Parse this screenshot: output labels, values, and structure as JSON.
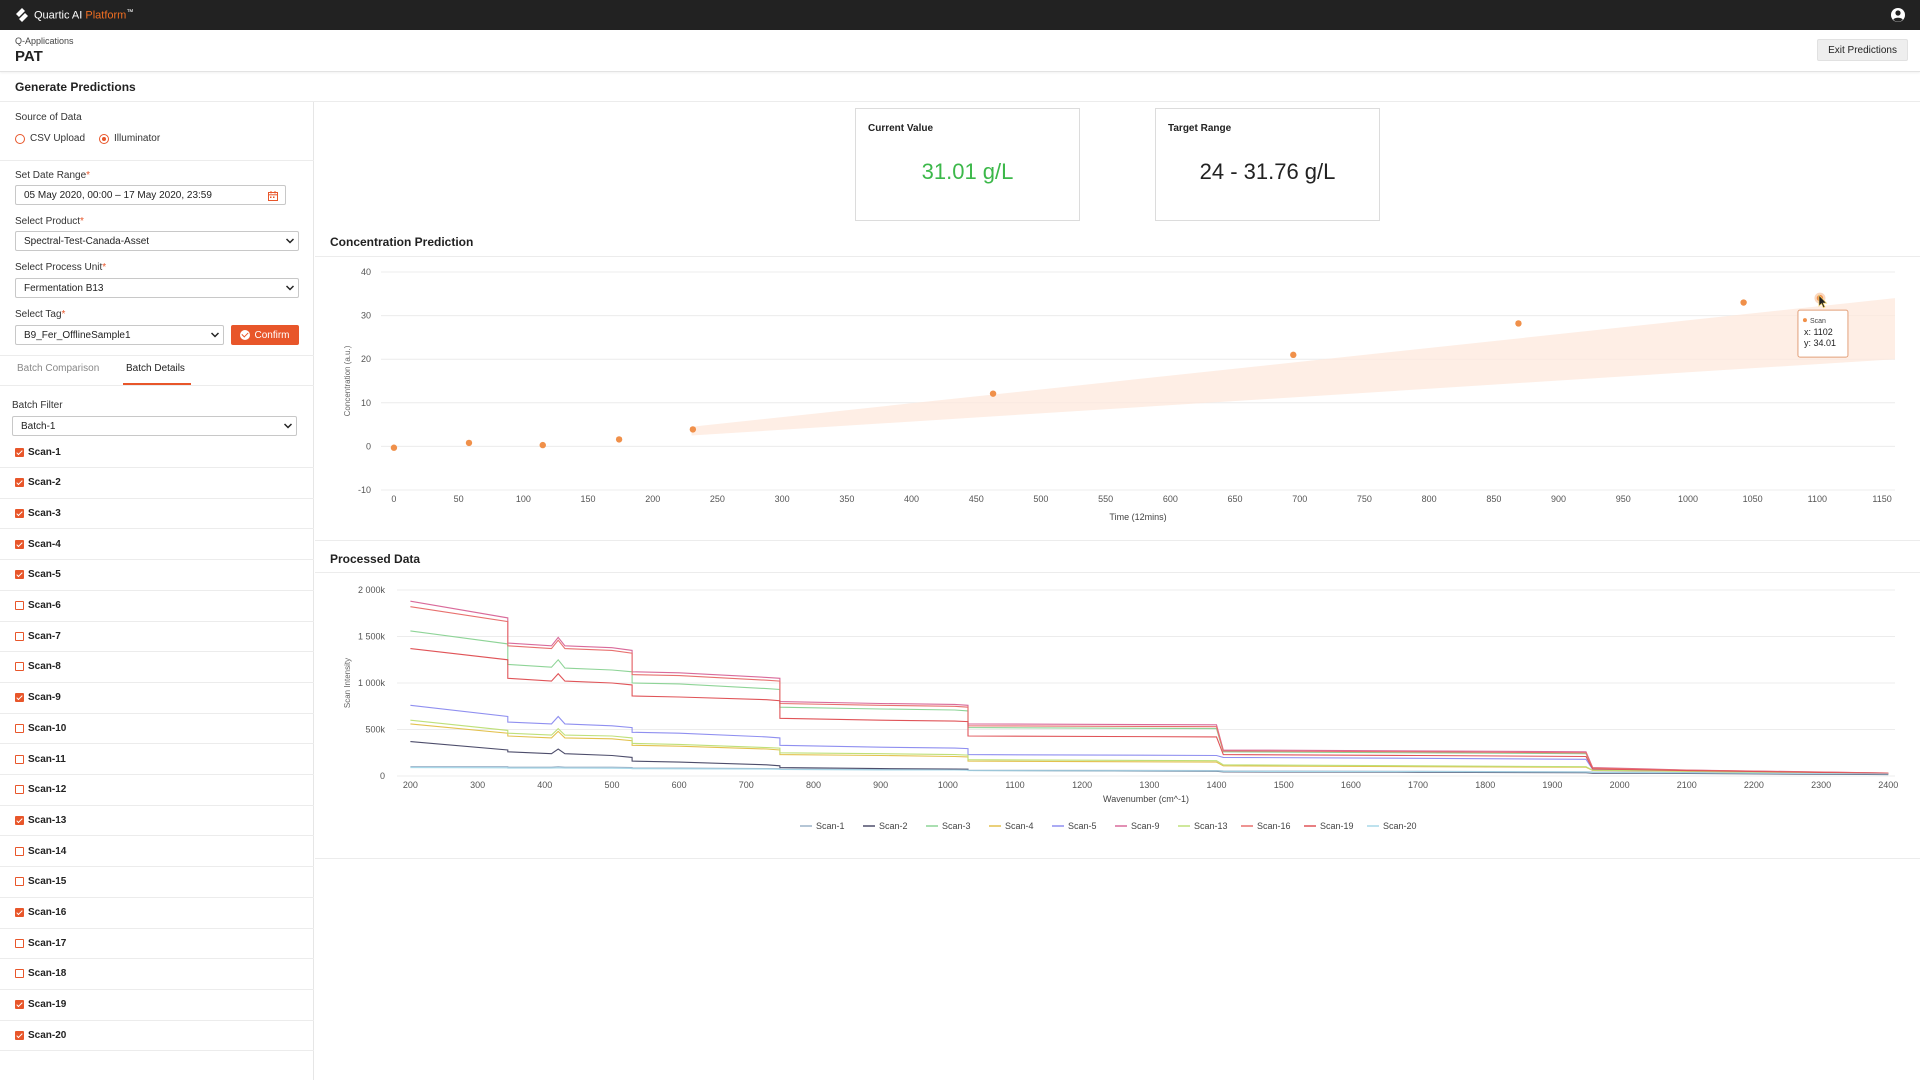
{
  "topbar": {
    "brand_prefix": "Quartic AI ",
    "brand_accent": "Platform",
    "brand_tm": "™",
    "user_icon": "user-circle-icon",
    "logo_icon": "quartic-logo-icon"
  },
  "header": {
    "breadcrumb": "Q-Applications",
    "title": "PAT",
    "exit_label": "Exit Predictions"
  },
  "section_title": "Generate Predictions",
  "sidebar": {
    "source_label": "Source of Data",
    "source_options": [
      {
        "label": "CSV Upload",
        "selected": false
      },
      {
        "label": "Illuminator",
        "selected": true
      }
    ],
    "date_range_label": "Set Date Range",
    "date_range_value": "05 May 2020, 00:00 – 17 May 2020, 23:59",
    "product_label": "Select Product",
    "product_value": "Spectral-Test-Canada-Asset",
    "process_unit_label": "Select Process Unit",
    "process_unit_value": "Fermentation B13",
    "tag_label": "Select Tag",
    "tag_value": "B9_Fer_OfflineSample1",
    "confirm_label": "Confirm",
    "required_mark": "*",
    "tabs": [
      {
        "label": "Batch Comparison",
        "active": false
      },
      {
        "label": "Batch Details",
        "active": true
      }
    ],
    "batch_filter_label": "Batch Filter",
    "batch_filter_value": "Batch-1",
    "scans": [
      {
        "label": "Scan-1",
        "checked": true
      },
      {
        "label": "Scan-2",
        "checked": true
      },
      {
        "label": "Scan-3",
        "checked": true
      },
      {
        "label": "Scan-4",
        "checked": true
      },
      {
        "label": "Scan-5",
        "checked": true
      },
      {
        "label": "Scan-6",
        "checked": false
      },
      {
        "label": "Scan-7",
        "checked": false
      },
      {
        "label": "Scan-8",
        "checked": false
      },
      {
        "label": "Scan-9",
        "checked": true
      },
      {
        "label": "Scan-10",
        "checked": false
      },
      {
        "label": "Scan-11",
        "checked": false
      },
      {
        "label": "Scan-12",
        "checked": false
      },
      {
        "label": "Scan-13",
        "checked": true
      },
      {
        "label": "Scan-14",
        "checked": false
      },
      {
        "label": "Scan-15",
        "checked": false
      },
      {
        "label": "Scan-16",
        "checked": true
      },
      {
        "label": "Scan-17",
        "checked": false
      },
      {
        "label": "Scan-18",
        "checked": false
      },
      {
        "label": "Scan-19",
        "checked": true
      },
      {
        "label": "Scan-20",
        "checked": true
      }
    ]
  },
  "cards": {
    "current_title": "Current Value",
    "current_value": "31.01 g/L",
    "current_color": "#3cb84a",
    "target_title": "Target Range",
    "target_value": "24 - 31.76 g/L"
  },
  "colors": {
    "accent": "#e8562a",
    "point": "#f0904a",
    "band": "#fde8dc"
  },
  "chart_data": [
    {
      "type": "scatter",
      "title": "Concentration Prediction",
      "xlabel": "Time (12mins)",
      "ylabel": "Concentration (a.u.)",
      "xlim": [
        -10,
        1160
      ],
      "ylim": [
        -10,
        40
      ],
      "xticks": [
        0,
        50,
        100,
        150,
        200,
        250,
        300,
        350,
        400,
        450,
        500,
        550,
        600,
        650,
        700,
        750,
        800,
        850,
        900,
        950,
        1000,
        1050,
        1100,
        1150
      ],
      "yticks": [
        -10,
        0,
        10,
        20,
        30,
        40
      ],
      "grid": true,
      "points": [
        {
          "x": 0,
          "y": -0.3
        },
        {
          "x": 58,
          "y": 0.8
        },
        {
          "x": 115,
          "y": 0.3
        },
        {
          "x": 174,
          "y": 1.6
        },
        {
          "x": 231,
          "y": 3.9
        },
        {
          "x": 463,
          "y": 12.1
        },
        {
          "x": 695,
          "y": 21.0
        },
        {
          "x": 869,
          "y": 28.2
        },
        {
          "x": 1043,
          "y": 33.0
        },
        {
          "x": 1102,
          "y": 34.01
        }
      ],
      "band": {
        "x": [
          230,
          1160
        ],
        "lower": [
          2.5,
          20.0
        ],
        "upper": [
          4.5,
          34.0
        ]
      },
      "tooltip": {
        "series": "Scan",
        "x_label": "x: ",
        "x": "1102",
        "y_label": "y: ",
        "y": "34.01"
      }
    },
    {
      "type": "line",
      "title": "Processed Data",
      "xlabel": "Wavenumber (cm^-1)",
      "ylabel": "Scan Intensity",
      "xlim": [
        180,
        2410
      ],
      "ylim": [
        0,
        2000000
      ],
      "xticks": [
        200,
        300,
        400,
        500,
        600,
        700,
        800,
        900,
        1000,
        1100,
        1200,
        1300,
        1400,
        1500,
        1600,
        1700,
        1800,
        1900,
        2000,
        2100,
        2200,
        2300,
        2400
      ],
      "yticks": [
        0,
        500000,
        1000000,
        1500000,
        2000000
      ],
      "ytick_labels": [
        "0",
        "500k",
        "1 000k",
        "1 500k",
        "2 000k"
      ],
      "grid": true,
      "legend_position": "bottom",
      "x": [
        200,
        345,
        345,
        410,
        420,
        430,
        500,
        530,
        530,
        600,
        730,
        750,
        750,
        900,
        1010,
        1030,
        1030,
        1400,
        1410,
        1700,
        1950,
        1960,
        2100,
        2400
      ],
      "series": [
        {
          "name": "Scan-1",
          "color": "#9cb3c9",
          "values": [
            100000,
            100000,
            95000,
            95000,
            100000,
            95000,
            95000,
            90000,
            85000,
            85000,
            80000,
            78000,
            75000,
            70000,
            68000,
            66000,
            62000,
            58000,
            55000,
            50000,
            45000,
            42000,
            38000,
            25000
          ]
        },
        {
          "name": "Scan-2",
          "color": "#4d4d6b",
          "values": [
            370000,
            280000,
            260000,
            240000,
            290000,
            240000,
            220000,
            200000,
            160000,
            150000,
            120000,
            110000,
            90000,
            80000,
            75000,
            73000,
            60000,
            50000,
            45000,
            40000,
            35000,
            30000,
            28000,
            15000
          ]
        },
        {
          "name": "Scan-3",
          "color": "#8ed497",
          "values": [
            1560000,
            1420000,
            1200000,
            1170000,
            1250000,
            1160000,
            1140000,
            1120000,
            1000000,
            990000,
            940000,
            930000,
            740000,
            720000,
            710000,
            700000,
            520000,
            510000,
            260000,
            250000,
            240000,
            80000,
            60000,
            30000
          ]
        },
        {
          "name": "Scan-4",
          "color": "#e3c14e",
          "values": [
            560000,
            460000,
            430000,
            410000,
            480000,
            410000,
            400000,
            380000,
            330000,
            320000,
            290000,
            280000,
            230000,
            220000,
            210000,
            205000,
            160000,
            150000,
            110000,
            100000,
            95000,
            60000,
            50000,
            25000
          ]
        },
        {
          "name": "Scan-5",
          "color": "#8f8ff0",
          "values": [
            760000,
            640000,
            580000,
            560000,
            640000,
            560000,
            540000,
            520000,
            470000,
            460000,
            420000,
            410000,
            330000,
            310000,
            300000,
            295000,
            230000,
            220000,
            200000,
            190000,
            180000,
            70000,
            55000,
            28000
          ]
        },
        {
          "name": "Scan-9",
          "color": "#d96a9a",
          "values": [
            1880000,
            1700000,
            1430000,
            1400000,
            1490000,
            1400000,
            1380000,
            1350000,
            1120000,
            1110000,
            1060000,
            1050000,
            800000,
            780000,
            770000,
            760000,
            560000,
            550000,
            280000,
            270000,
            260000,
            90000,
            65000,
            32000
          ]
        },
        {
          "name": "Scan-13",
          "color": "#bfe07a",
          "values": [
            600000,
            490000,
            460000,
            440000,
            510000,
            440000,
            430000,
            410000,
            350000,
            340000,
            305000,
            300000,
            250000,
            240000,
            230000,
            225000,
            175000,
            165000,
            120000,
            110000,
            100000,
            62000,
            52000,
            26000
          ]
        },
        {
          "name": "Scan-16",
          "color": "#e8706e",
          "values": [
            1820000,
            1660000,
            1400000,
            1370000,
            1460000,
            1370000,
            1350000,
            1320000,
            1090000,
            1080000,
            1030000,
            1020000,
            780000,
            760000,
            750000,
            740000,
            540000,
            530000,
            270000,
            260000,
            250000,
            85000,
            62000,
            31000
          ]
        },
        {
          "name": "Scan-19",
          "color": "#e05458",
          "values": [
            1370000,
            1250000,
            1050000,
            1020000,
            1100000,
            1020000,
            1000000,
            980000,
            860000,
            850000,
            820000,
            810000,
            620000,
            600000,
            590000,
            585000,
            430000,
            420000,
            230000,
            220000,
            210000,
            75000,
            58000,
            28000
          ]
        },
        {
          "name": "Scan-20",
          "color": "#a8d8e8",
          "values": [
            90000,
            88000,
            85000,
            85000,
            88000,
            85000,
            84000,
            82000,
            78000,
            77000,
            74000,
            72000,
            70000,
            66000,
            64000,
            62000,
            58000,
            54000,
            50000,
            46000,
            42000,
            38000,
            34000,
            22000
          ]
        }
      ]
    }
  ]
}
